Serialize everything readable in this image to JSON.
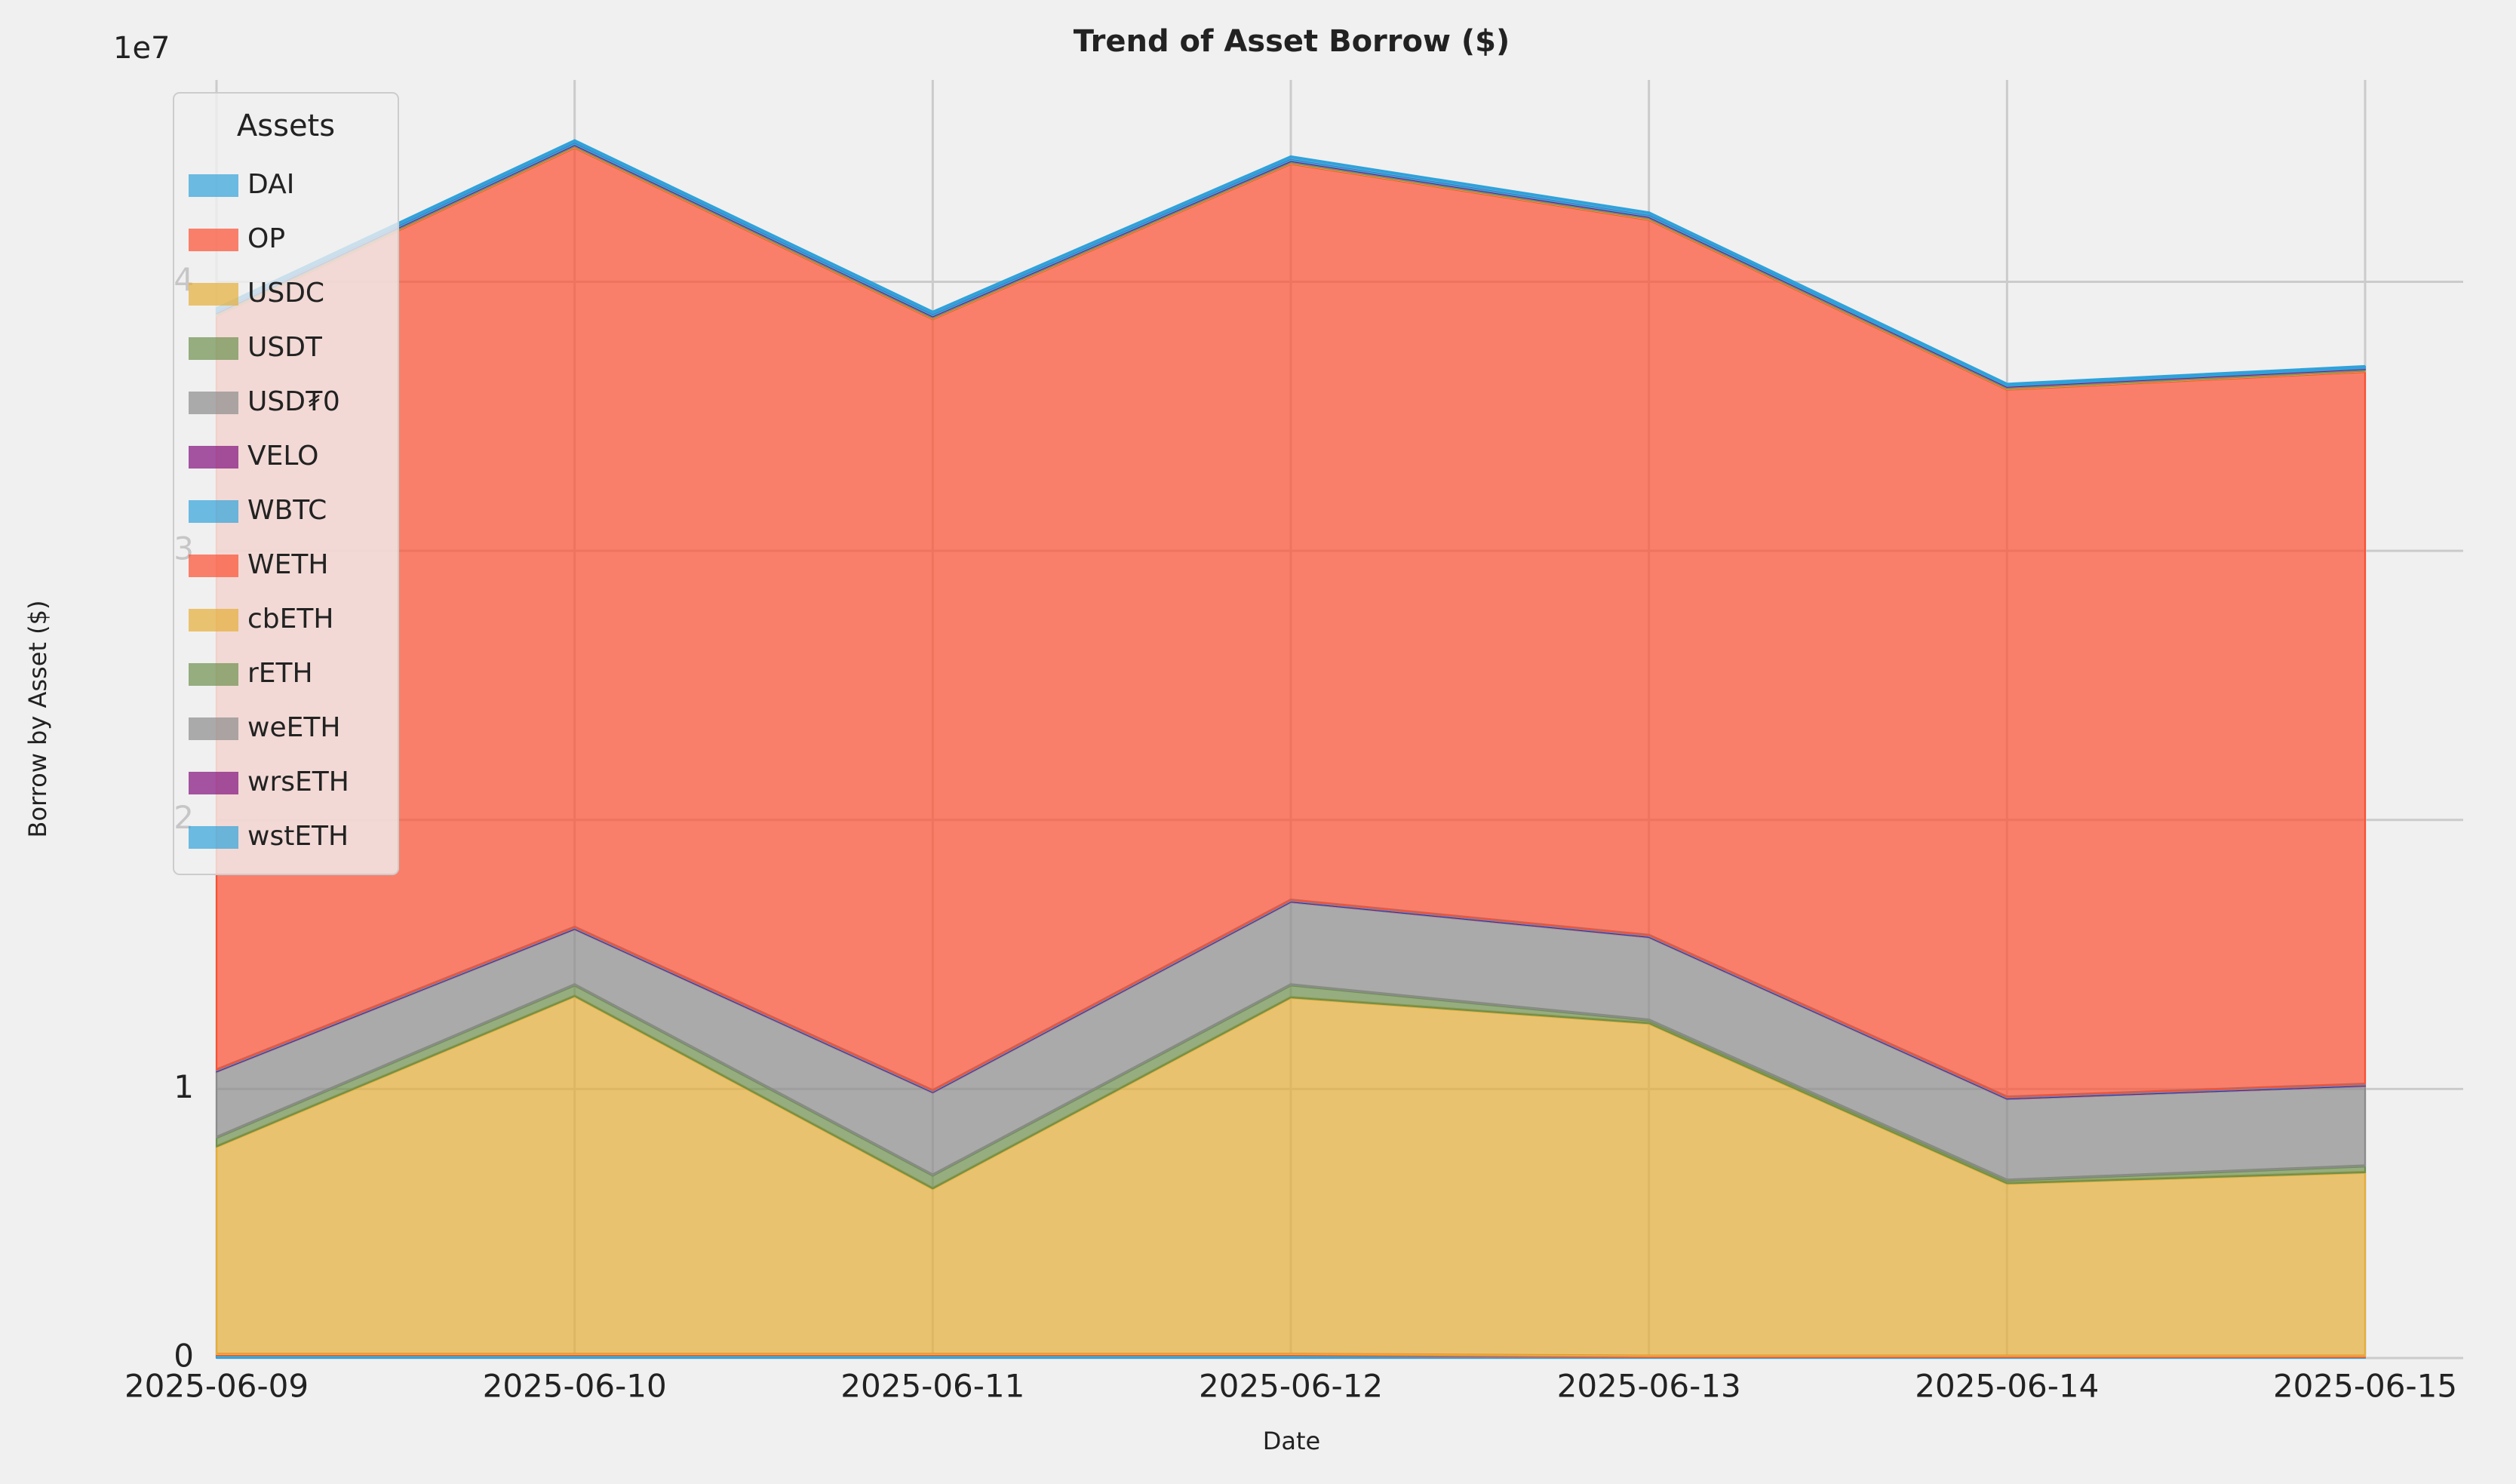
{
  "chart_data": {
    "type": "stacked_area",
    "title": "Trend of Asset Borrow ($)",
    "xlabel": "Date",
    "ylabel": "Borrow by Asset ($)",
    "y_offset_label": "1e7",
    "legend_title": "Assets",
    "legend": "upper left",
    "grid": true,
    "x": [
      "2025-06-09",
      "2025-06-10",
      "2025-06-11",
      "2025-06-12",
      "2025-06-13",
      "2025-06-14",
      "2025-06-15"
    ],
    "ylim": [
      0,
      4.75
    ],
    "yticks": [
      0,
      1,
      2,
      3,
      4
    ],
    "series": [
      {
        "name": "DAI",
        "color": "#30a2da",
        "values": [
          0.01,
          0.01,
          0.01,
          0.01,
          0.003,
          0.003,
          0.003
        ]
      },
      {
        "name": "OP",
        "color": "#fc4f30",
        "values": [
          0.004,
          0.004,
          0.004,
          0.004,
          0.004,
          0.004,
          0.004
        ]
      },
      {
        "name": "USDC",
        "color": "#e5ae38",
        "values": [
          0.772,
          1.331,
          0.616,
          1.326,
          1.237,
          0.642,
          0.683
        ]
      },
      {
        "name": "USDT",
        "color": "#6d904f",
        "values": [
          0.034,
          0.042,
          0.05,
          0.047,
          0.012,
          0.012,
          0.024
        ]
      },
      {
        "name": "USD₮0",
        "color": "#8b8b8b",
        "values": [
          0.245,
          0.208,
          0.308,
          0.309,
          0.309,
          0.303,
          0.298
        ]
      },
      {
        "name": "VELO",
        "color": "#810f7c",
        "values": [
          0.003,
          0.003,
          0.003,
          0.003,
          0.003,
          0.003,
          0.003
        ]
      },
      {
        "name": "WBTC",
        "color": "#30a2da",
        "values": [
          0.003,
          0.003,
          0.003,
          0.003,
          0.003,
          0.003,
          0.003
        ]
      },
      {
        "name": "WETH",
        "color": "#fc4f30",
        "values": [
          2.804,
          2.899,
          2.869,
          2.738,
          2.661,
          2.631,
          2.649
        ]
      },
      {
        "name": "cbETH",
        "color": "#e5ae38",
        "values": [
          0.003,
          0.003,
          0.003,
          0.003,
          0.003,
          0.003,
          0.003
        ]
      },
      {
        "name": "rETH",
        "color": "#6d904f",
        "values": [
          0.002,
          0.002,
          0.002,
          0.002,
          0.002,
          0.002,
          0.002
        ]
      },
      {
        "name": "weETH",
        "color": "#8b8b8b",
        "values": [
          0.004,
          0.004,
          0.004,
          0.004,
          0.004,
          0.004,
          0.004
        ]
      },
      {
        "name": "wrsETH",
        "color": "#810f7c",
        "values": [
          0.002,
          0.002,
          0.002,
          0.002,
          0.002,
          0.002,
          0.002
        ]
      },
      {
        "name": "wstETH",
        "color": "#30a2da",
        "values": [
          0.014,
          0.013,
          0.013,
          0.013,
          0.013,
          0.007,
          0.007
        ]
      }
    ]
  }
}
